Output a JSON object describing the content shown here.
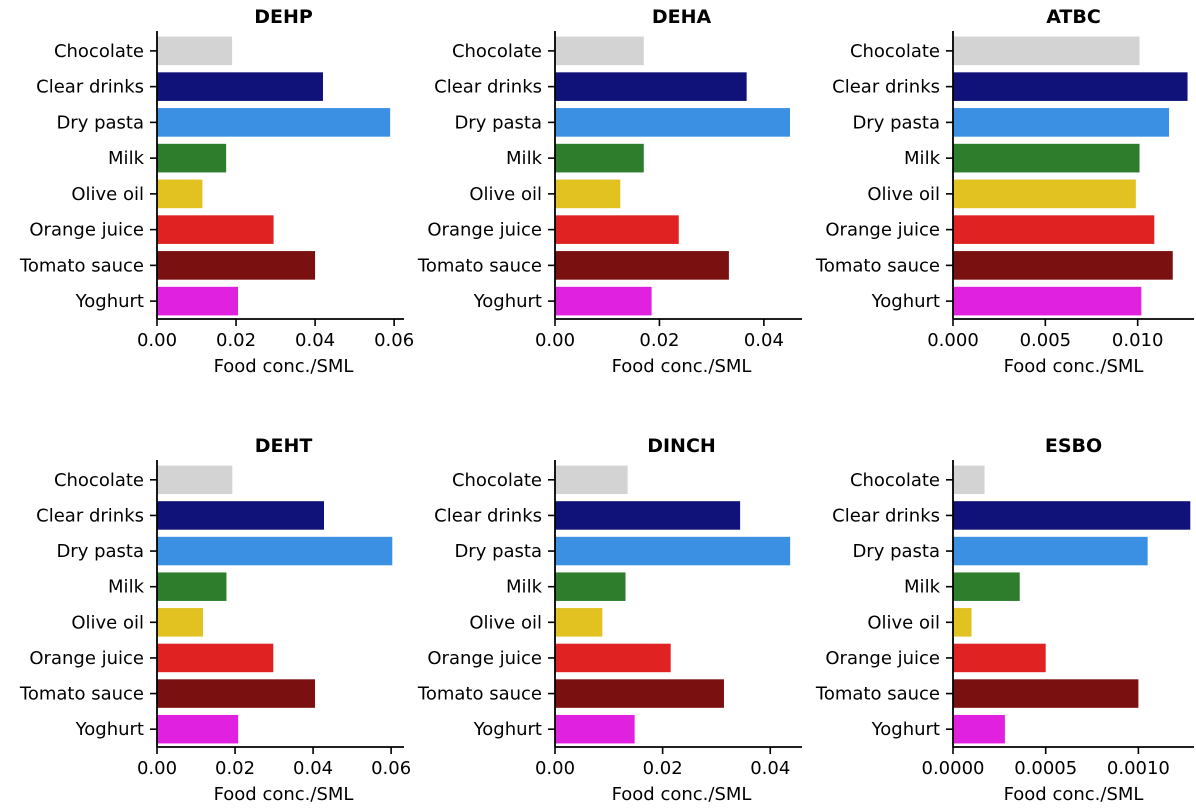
{
  "colors": {
    "Chocolate": "#d3d3d3",
    "Clear drinks": "#11117a",
    "Dry pasta": "#3b90e4",
    "Milk": "#2d7d2d",
    "Olive oil": "#e1c221",
    "Orange juice": "#e02222",
    "Tomato sauce": "#7a1010",
    "Yoghurt": "#e022e0"
  },
  "chart_data": [
    {
      "type": "bar",
      "orientation": "horizontal",
      "title": "DEHP",
      "xlabel": "Food conc./SML",
      "categories": [
        "Chocolate",
        "Clear drinks",
        "Dry pasta",
        "Milk",
        "Olive oil",
        "Orange juice",
        "Tomato sauce",
        "Yoghurt"
      ],
      "values": [
        0.019,
        0.042,
        0.059,
        0.0175,
        0.0115,
        0.0295,
        0.04,
        0.0205
      ],
      "xlim": [
        0,
        0.0625
      ],
      "xticks": [
        0,
        0.02,
        0.04,
        0.06
      ],
      "xtick_labels": [
        "0.00",
        "0.02",
        "0.04",
        "0.06"
      ]
    },
    {
      "type": "bar",
      "orientation": "horizontal",
      "title": "DEHA",
      "xlabel": "Food conc./SML",
      "categories": [
        "Chocolate",
        "Clear drinks",
        "Dry pasta",
        "Milk",
        "Olive oil",
        "Orange juice",
        "Tomato sauce",
        "Yoghurt"
      ],
      "values": [
        0.017,
        0.0367,
        0.045,
        0.017,
        0.0125,
        0.0237,
        0.0333,
        0.0185
      ],
      "xlim": [
        0,
        0.0473
      ],
      "xticks": [
        0,
        0.02,
        0.04
      ],
      "xtick_labels": [
        "0.00",
        "0.02",
        "0.04"
      ]
    },
    {
      "type": "bar",
      "orientation": "horizontal",
      "title": "ATBC",
      "xlabel": "Food conc./SML",
      "categories": [
        "Chocolate",
        "Clear drinks",
        "Dry pasta",
        "Milk",
        "Olive oil",
        "Orange juice",
        "Tomato sauce",
        "Yoghurt"
      ],
      "values": [
        0.0101,
        0.0127,
        0.0117,
        0.0101,
        0.0099,
        0.0109,
        0.0119,
        0.0102
      ],
      "xlim": [
        0,
        0.01305
      ],
      "xticks": [
        0,
        0.005,
        0.01
      ],
      "xtick_labels": [
        "0.000",
        "0.005",
        "0.010"
      ]
    },
    {
      "type": "bar",
      "orientation": "horizontal",
      "title": "DEHT",
      "xlabel": "Food conc./SML",
      "categories": [
        "Chocolate",
        "Clear drinks",
        "Dry pasta",
        "Milk",
        "Olive oil",
        "Orange juice",
        "Tomato sauce",
        "Yoghurt"
      ],
      "values": [
        0.0193,
        0.0428,
        0.0603,
        0.0178,
        0.0118,
        0.0298,
        0.0405,
        0.0208
      ],
      "xlim": [
        0,
        0.0633
      ],
      "xticks": [
        0,
        0.02,
        0.04,
        0.06
      ],
      "xtick_labels": [
        "0.00",
        "0.02",
        "0.04",
        "0.06"
      ]
    },
    {
      "type": "bar",
      "orientation": "horizontal",
      "title": "DINCH",
      "xlabel": "Food conc./SML",
      "categories": [
        "Chocolate",
        "Clear drinks",
        "Dry pasta",
        "Milk",
        "Olive oil",
        "Orange juice",
        "Tomato sauce",
        "Yoghurt"
      ],
      "values": [
        0.0135,
        0.0344,
        0.0437,
        0.0131,
        0.0088,
        0.0215,
        0.0314,
        0.0148
      ],
      "xlim": [
        0,
        0.0459
      ],
      "xticks": [
        0,
        0.02,
        0.04
      ],
      "xtick_labels": [
        "0.00",
        "0.02",
        "0.04"
      ]
    },
    {
      "type": "bar",
      "orientation": "horizontal",
      "title": "ESBO",
      "xlabel": "Food conc./SML",
      "categories": [
        "Chocolate",
        "Clear drinks",
        "Dry pasta",
        "Milk",
        "Olive oil",
        "Orange juice",
        "Tomato sauce",
        "Yoghurt"
      ],
      "values": [
        0.00017,
        0.00128,
        0.00105,
        0.00036,
        0.0001,
        0.0005,
        0.001,
        0.00028
      ],
      "xlim": [
        0,
        0.0013
      ],
      "xticks": [
        0,
        0.0005,
        0.001
      ],
      "xtick_labels": [
        "0.0000",
        "0.0005",
        "0.0010"
      ]
    }
  ]
}
